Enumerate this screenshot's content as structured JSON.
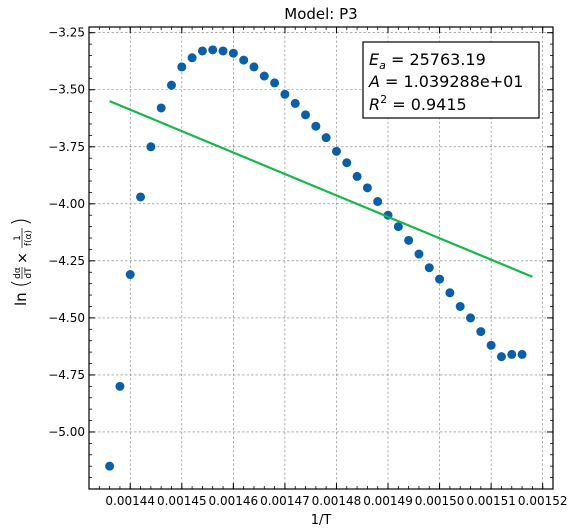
{
  "chart_data": {
    "type": "scatter",
    "title": "Model: P3",
    "xlabel": "1/T",
    "ylabel": "ln(dα/dT × 1/f(α))",
    "xlim": [
      0.001432,
      0.001522
    ],
    "ylim": [
      -5.25,
      -3.225
    ],
    "x_ticks": [
      0.00144,
      0.00145,
      0.00146,
      0.00147,
      0.00148,
      0.00149,
      0.0015,
      0.00151,
      0.00152
    ],
    "x_tick_labels": [
      "0.00144",
      "0.00145",
      "0.00146",
      "0.00147",
      "0.00148",
      "0.00149",
      "0.00150",
      "0.00151",
      "0.00152"
    ],
    "y_ticks": [
      -5.0,
      -4.75,
      -4.5,
      -4.25,
      -4.0,
      -3.75,
      -3.5,
      -3.25
    ],
    "y_tick_labels": [
      "−5.00",
      "−4.75",
      "−4.50",
      "−4.25",
      "−4.00",
      "−3.75",
      "−3.50",
      "−3.25"
    ],
    "grid": true,
    "series": [
      {
        "kind": "scatter",
        "color": "#0b5ea8",
        "x": [
          0.001436,
          0.001438,
          0.00144,
          0.001442,
          0.001444,
          0.001446,
          0.001448,
          0.00145,
          0.001452,
          0.001454,
          0.001456,
          0.001458,
          0.00146,
          0.001462,
          0.001464,
          0.001466,
          0.001468,
          0.00147,
          0.001472,
          0.001474,
          0.001476,
          0.001478,
          0.00148,
          0.001482,
          0.001484,
          0.001486,
          0.001488,
          0.00149,
          0.001492,
          0.001494,
          0.001496,
          0.001498,
          0.0015,
          0.001502,
          0.001504,
          0.001506,
          0.001508,
          0.00151,
          0.001512,
          0.001514,
          0.001516
        ],
        "y": [
          -5.15,
          -4.8,
          -4.31,
          -3.97,
          -3.75,
          -3.58,
          -3.48,
          -3.4,
          -3.36,
          -3.33,
          -3.325,
          -3.33,
          -3.34,
          -3.37,
          -3.4,
          -3.44,
          -3.47,
          -3.52,
          -3.56,
          -3.61,
          -3.66,
          -3.71,
          -3.77,
          -3.82,
          -3.88,
          -3.93,
          -3.99,
          -4.05,
          -4.1,
          -4.16,
          -4.22,
          -4.28,
          -4.33,
          -4.39,
          -4.45,
          -4.5,
          -4.56,
          -4.62,
          -4.67,
          -4.66,
          -4.66
        ]
      },
      {
        "kind": "line",
        "color": "#16b84a",
        "x": [
          0.001436,
          0.001518
        ],
        "y": [
          -3.55,
          -4.32
        ]
      }
    ],
    "annotation": {
      "ea_value": "25763.19",
      "a_value": "1.039288e+01",
      "r2_value": "0.9415"
    }
  }
}
